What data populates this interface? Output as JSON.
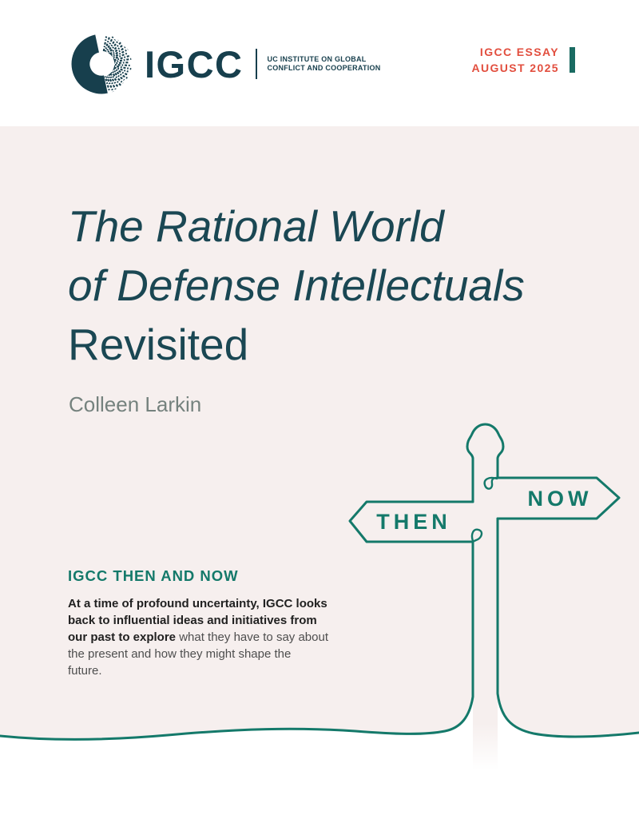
{
  "header": {
    "logo": {
      "acronym": "IGCC",
      "org_line1": "UC INSTITUTE ON GLOBAL",
      "org_line2": "CONFLICT AND COOPERATION"
    },
    "label": {
      "line1": "IGCC ESSAY",
      "line2": "AUGUST 2025"
    }
  },
  "cover": {
    "title_line1": "The Rational World",
    "title_line2": "of Defense Intellectuals",
    "title_line3": "Revisited",
    "author": "Colleen Larkin"
  },
  "signpost": {
    "left_sign": "THEN",
    "right_sign": "NOW"
  },
  "section": {
    "heading": "IGCC THEN AND NOW",
    "intro_bold": "At a time of profound uncertainty, IGCC looks back to influential ideas and initiatives from our past to explore",
    "intro_rest": " what they have to say about the present and how they might shape the future."
  },
  "colors": {
    "dark_teal": "#173f4d",
    "title_teal": "#1a4753",
    "sign_teal": "#14796a",
    "bar_teal": "#1a6b62",
    "accent_red": "#e24e3e",
    "beige_background": "#f6efee",
    "author_gray": "#75827e"
  }
}
